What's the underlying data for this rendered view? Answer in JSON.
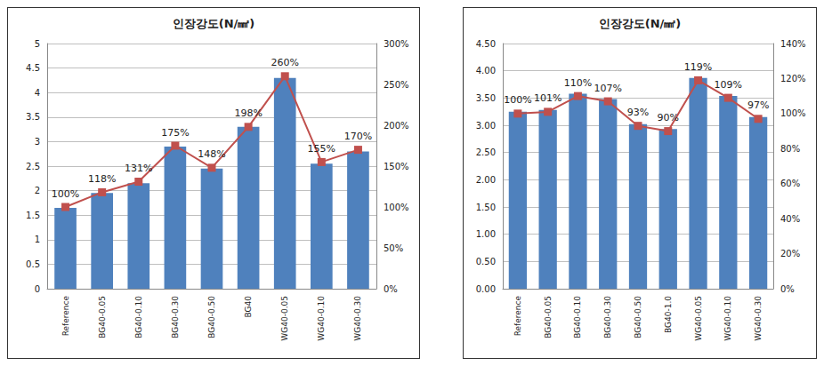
{
  "chart_data": [
    {
      "type": "bar",
      "title": "인장강도(N/㎟)",
      "categories": [
        "Reference",
        "BG40-0.05",
        "BG40-0.10",
        "BG40-0.30",
        "BG40-0.50",
        "BG40",
        "WG40-0.05",
        "WG40-0.10",
        "WG40-0.30"
      ],
      "series": [
        {
          "type": "bar",
          "color": "#4f81bd",
          "values": [
            1.65,
            1.95,
            2.15,
            2.9,
            2.45,
            3.3,
            4.3,
            2.55,
            2.8
          ]
        },
        {
          "type": "line",
          "axis": "y2",
          "color": "#c0504d",
          "marker": "square",
          "data_labels": true,
          "values": [
            100,
            118,
            131,
            175,
            148,
            198,
            260,
            155,
            170
          ],
          "value_labels": [
            "100%",
            "118%",
            "131%",
            "175%",
            "148%",
            "198%",
            "260%",
            "155%",
            "170%"
          ]
        }
      ],
      "ylim": [
        0,
        5
      ],
      "yticks": [
        0,
        0.5,
        1,
        1.5,
        2,
        2.5,
        3,
        3.5,
        4,
        4.5,
        5
      ],
      "y2lim": [
        0,
        300
      ],
      "y2ticks": [
        {
          "value": 0,
          "label": "0%"
        },
        {
          "value": 50,
          "label": "50%"
        },
        {
          "value": 100,
          "label": "100%"
        },
        {
          "value": 150,
          "label": "150%"
        },
        {
          "value": 200,
          "label": "200%"
        },
        {
          "value": 250,
          "label": "250%"
        },
        {
          "value": 300,
          "label": "300%"
        }
      ],
      "grid": true
    },
    {
      "type": "bar",
      "title": "인장강도(N/㎟)",
      "categories": [
        "Reference",
        "BG40-0.05",
        "BG40-0.10",
        "BG40-0.30",
        "BG40-0.50",
        "BG40-1.0",
        "WG40-0.05",
        "WG40-0.10",
        "WG40-0.30"
      ],
      "series": [
        {
          "type": "bar",
          "color": "#4f81bd",
          "values": [
            3.25,
            3.28,
            3.58,
            3.48,
            3.02,
            2.93,
            3.87,
            3.54,
            3.15
          ]
        },
        {
          "type": "line",
          "axis": "y2",
          "color": "#c0504d",
          "marker": "square",
          "data_labels": true,
          "values": [
            100,
            101,
            110,
            107,
            93,
            90,
            119,
            109,
            97
          ],
          "value_labels": [
            "100%",
            "101%",
            "110%",
            "107%",
            "93%",
            "90%",
            "119%",
            "109%",
            "97%"
          ]
        }
      ],
      "ylim": [
        0,
        4.5
      ],
      "yticks": [
        {
          "value": 0,
          "label": "0.00"
        },
        {
          "value": 0.5,
          "label": "0.50"
        },
        {
          "value": 1,
          "label": "1.00"
        },
        {
          "value": 1.5,
          "label": "1.50"
        },
        {
          "value": 2,
          "label": "2.00"
        },
        {
          "value": 2.5,
          "label": "2.50"
        },
        {
          "value": 3,
          "label": "3.00"
        },
        {
          "value": 3.5,
          "label": "3.50"
        },
        {
          "value": 4,
          "label": "4.00"
        },
        {
          "value": 4.5,
          "label": "4.50"
        }
      ],
      "y2lim": [
        0,
        140
      ],
      "y2ticks": [
        {
          "value": 0,
          "label": "0%"
        },
        {
          "value": 20,
          "label": "20%"
        },
        {
          "value": 40,
          "label": "40%"
        },
        {
          "value": 60,
          "label": "60%"
        },
        {
          "value": 80,
          "label": "80%"
        },
        {
          "value": 100,
          "label": "100%"
        },
        {
          "value": 120,
          "label": "120%"
        },
        {
          "value": 140,
          "label": "140%"
        }
      ],
      "grid": true
    }
  ]
}
